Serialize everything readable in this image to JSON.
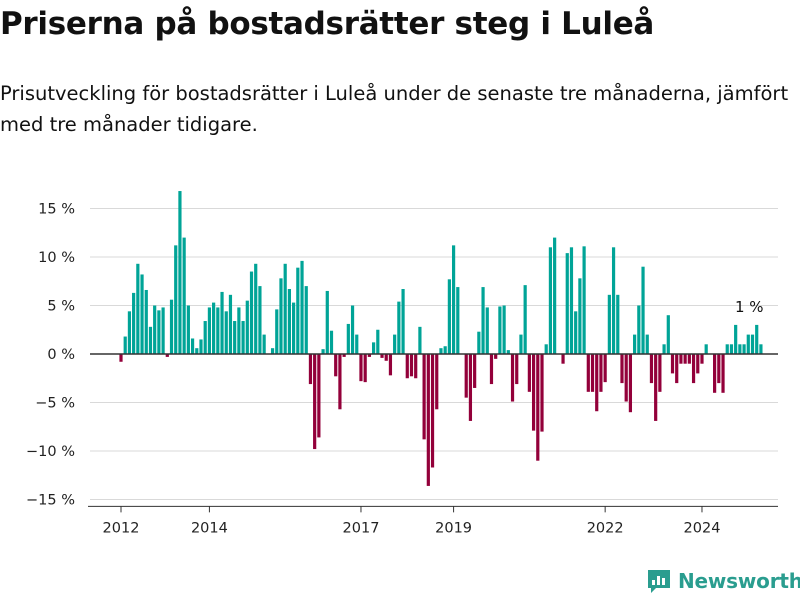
{
  "header": {
    "title": "Priserna på bostadsrätter steg i Luleå",
    "subtitle": "Prisutveckling för bostadsrätter i Luleå under de senaste tre månaderna, jämfört med tre månader tidigare."
  },
  "brand": {
    "name": "Newsworthy",
    "logo_icon": "bar-chart-logo-icon",
    "color": "#2a9d8f"
  },
  "colors": {
    "positive": "#00a497",
    "negative": "#93003a",
    "grid": "#d9d9d9",
    "zero_line": "#333333"
  },
  "chart_data": {
    "type": "bar",
    "title": "Priserna på bostadsrätter steg i Luleå",
    "xlabel": "",
    "ylabel": "",
    "ylim": [
      -15.5,
      17
    ],
    "y_ticks": [
      15,
      10,
      5,
      0,
      -5,
      -10,
      -15
    ],
    "y_tick_labels": [
      "15 %",
      "10 %",
      "5 %",
      "0 %",
      "−5 %",
      "−10 %",
      "−15 %"
    ],
    "x_ticks": [
      {
        "label": "2012",
        "index": 0
      },
      {
        "label": "2014",
        "index": 21
      },
      {
        "label": "2017",
        "index": 57
      },
      {
        "label": "2019",
        "index": 79
      },
      {
        "label": "2022",
        "index": 115
      },
      {
        "label": "2024",
        "index": 138
      }
    ],
    "grid": true,
    "annotation": {
      "label": "1 %",
      "index": 149
    },
    "values": [
      -0.8,
      1.8,
      4.4,
      6.3,
      9.3,
      8.2,
      6.6,
      2.8,
      5.0,
      4.5,
      4.8,
      -0.3,
      5.6,
      11.2,
      16.8,
      12.0,
      5.0,
      1.6,
      0.6,
      1.5,
      3.4,
      4.8,
      5.3,
      4.8,
      6.4,
      4.4,
      6.1,
      3.4,
      4.8,
      3.4,
      5.5,
      8.5,
      9.3,
      7.0,
      2.0,
      0.0,
      0.6,
      4.6,
      7.8,
      9.3,
      6.7,
      5.3,
      8.9,
      9.6,
      7.0,
      -3.1,
      -9.8,
      -8.6,
      0.5,
      6.5,
      2.4,
      -2.3,
      -5.7,
      -0.3,
      3.1,
      5.0,
      2.0,
      -2.8,
      -2.9,
      -0.3,
      1.2,
      2.5,
      -0.4,
      -0.7,
      -2.2,
      2.0,
      5.4,
      6.7,
      -2.5,
      -2.3,
      -2.5,
      2.8,
      -8.8,
      -13.6,
      -11.7,
      -5.7,
      0.6,
      0.8,
      7.7,
      11.2,
      6.9,
      0.0,
      -4.5,
      -6.9,
      -3.5,
      2.3,
      6.9,
      4.8,
      -3.1,
      -0.5,
      4.9,
      5.0,
      0.4,
      -4.9,
      -3.1,
      2.0,
      7.1,
      -3.9,
      -7.9,
      -11.0,
      -8.0,
      1.0,
      11.0,
      12.0,
      0.0,
      -1.0,
      10.4,
      11.0,
      4.4,
      7.8,
      11.1,
      -3.9,
      -3.9,
      -5.9,
      -3.9,
      -2.9,
      6.1,
      11.0,
      6.1,
      -3.0,
      -4.9,
      -6.0,
      2.0,
      5.0,
      9.0,
      2.0,
      -3.0,
      -6.9,
      -3.9,
      1.0,
      4.0,
      -2.0,
      -3.0,
      -1.0,
      -1.0,
      -1.0,
      -3.0,
      -2.0,
      -1.0,
      1.0,
      0.0,
      -4.0,
      -3.0,
      -4.0,
      1.0,
      1.0,
      3.0,
      1.0,
      1.0,
      2.0,
      2.0,
      3.0,
      1.0
    ]
  }
}
